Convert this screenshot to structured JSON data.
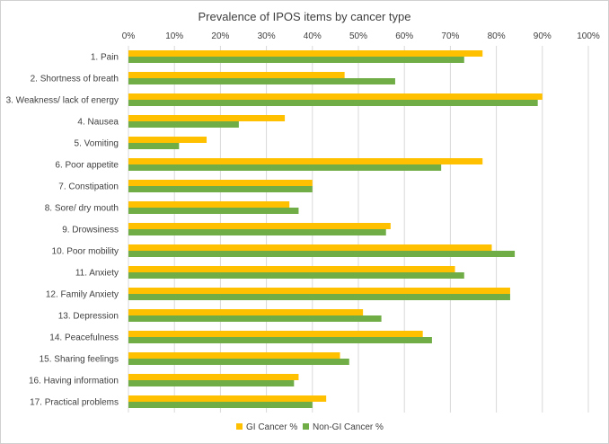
{
  "chart_data": {
    "type": "bar",
    "orientation": "horizontal",
    "title": "Prevalence of IPOS items by cancer type",
    "xlabel": "",
    "ylabel": "",
    "xlim": [
      0,
      100
    ],
    "x_ticks": [
      "0%",
      "10%",
      "20%",
      "30%",
      "40%",
      "50%",
      "60%",
      "70%",
      "80%",
      "90%",
      "100%"
    ],
    "categories": [
      "1. Pain",
      "2. Shortness of breath",
      "3. Weakness/ lack of energy",
      "4. Nausea",
      "5. Vomiting",
      "6. Poor appetite",
      "7. Constipation",
      "8. Sore/ dry mouth",
      "9. Drowsiness",
      "10. Poor mobility",
      "11. Anxiety",
      "12. Family Anxiety",
      "13. Depression",
      "14. Peacefulness",
      "15. Sharing feelings",
      "16. Having information",
      "17. Practical problems"
    ],
    "series": [
      {
        "name": "GI Cancer %",
        "color": "#FFC000",
        "values": [
          77,
          47,
          90,
          34,
          17,
          77,
          40,
          35,
          57,
          79,
          71,
          83,
          51,
          64,
          46,
          37,
          43
        ]
      },
      {
        "name": "Non-GI Cancer %",
        "color": "#70AD47",
        "values": [
          73,
          58,
          89,
          24,
          11,
          68,
          40,
          37,
          56,
          84,
          73,
          83,
          55,
          66,
          48,
          36,
          40
        ]
      }
    ],
    "grid": true,
    "legend_position": "bottom"
  }
}
